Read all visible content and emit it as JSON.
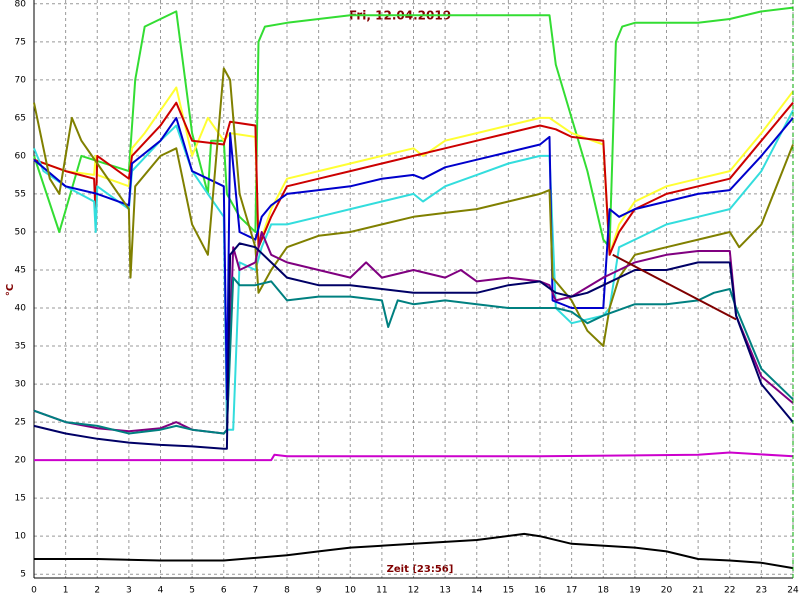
{
  "chart_data": {
    "type": "line",
    "title": "Fri, 12.04.2019",
    "x_label": "Zeit [23:56]",
    "y_label": "°C",
    "xlim": [
      0,
      24
    ],
    "xticks": [
      0,
      1,
      2,
      3,
      4,
      5,
      6,
      7,
      8,
      9,
      10,
      11,
      12,
      13,
      14,
      15,
      16,
      17,
      18,
      19,
      20,
      21,
      22,
      23,
      24
    ],
    "ylim": [
      4.5,
      80.5
    ],
    "yticks": [
      5,
      10,
      15,
      20,
      25,
      30,
      35,
      40,
      45,
      50,
      55,
      60,
      65,
      70,
      75,
      80
    ],
    "grid": true,
    "series": [
      {
        "color": "#33dd33",
        "x": [
          0,
          0.8,
          1.5,
          3,
          3.2,
          3.5,
          4.5,
          5,
          5.5,
          5.6,
          6,
          6.1,
          6.5,
          7,
          7.1,
          7.3,
          8,
          9,
          10,
          12,
          14,
          16.3,
          16.5,
          17,
          17.5,
          18,
          18.2,
          18.4,
          18.6,
          19,
          21,
          22,
          23,
          24
        ],
        "values": [
          60,
          50,
          60,
          58,
          70,
          77,
          79,
          63,
          55,
          62,
          62,
          55,
          52,
          50,
          75,
          77,
          77.5,
          78,
          78.5,
          78.5,
          78.5,
          78.5,
          72,
          65,
          58,
          49,
          48,
          75,
          77,
          77.5,
          77.5,
          78,
          79,
          79.5
        ]
      },
      {
        "color": "#ffff33",
        "x": [
          0,
          1,
          1.9,
          1.95,
          2,
          3,
          3.1,
          3.5,
          4,
          4.5,
          5,
          5.5,
          6,
          6.2,
          7,
          7.1,
          7.5,
          8,
          9,
          10,
          11,
          12,
          12.3,
          13,
          14,
          15,
          16,
          16.3,
          17,
          18,
          18.2,
          18.5,
          19,
          20,
          21,
          22,
          23,
          24
        ],
        "values": [
          59.5,
          58,
          57.5,
          60,
          57.5,
          56,
          61,
          63,
          66,
          69,
          60,
          65,
          62,
          63,
          62.5,
          48,
          53,
          57,
          58,
          59,
          60,
          61,
          60,
          62,
          63,
          64,
          65,
          65,
          63,
          61.5,
          47,
          51,
          54,
          56,
          57,
          58,
          63,
          68.5
        ]
      },
      {
        "color": "#cc0000",
        "x": [
          0,
          1,
          1.9,
          1.95,
          2,
          3,
          3.1,
          4,
          4.5,
          5,
          6,
          6.2,
          7,
          7.1,
          7.5,
          8,
          9,
          10,
          11,
          12,
          13,
          14,
          15,
          16,
          16.5,
          17,
          18,
          18.2,
          18.5,
          19,
          20,
          21,
          22,
          23,
          24
        ],
        "values": [
          59.5,
          58,
          57,
          52,
          60,
          57,
          60,
          64,
          67,
          62,
          61.5,
          64.5,
          64,
          48,
          52,
          56,
          57,
          58,
          59,
          60,
          61,
          62,
          63,
          64,
          63.5,
          62.5,
          62,
          47,
          50,
          53,
          55,
          56,
          57,
          62,
          67
        ]
      },
      {
        "color": "#33dddd",
        "x": [
          0,
          0.3,
          1,
          1.9,
          1.95,
          2,
          3,
          3.1,
          4,
          4.5,
          5,
          5.5,
          6,
          6.1,
          6.3,
          6.5,
          7,
          7.2,
          7.5,
          8,
          9,
          10,
          11,
          12,
          12.3,
          13,
          14,
          15,
          16,
          16.3,
          16.5,
          17,
          18,
          18.2,
          18.5,
          19,
          20,
          21,
          22,
          23,
          24
        ],
        "values": [
          61,
          58,
          56,
          54,
          50,
          56,
          53,
          58,
          62,
          64,
          58,
          55,
          52,
          24,
          24,
          46,
          45,
          48,
          51,
          51,
          52,
          53,
          54,
          55,
          54,
          56,
          57.5,
          59,
          60,
          60,
          40,
          38,
          39,
          40,
          48,
          49,
          51,
          52,
          53,
          58,
          66
        ]
      },
      {
        "color": "#0000cc",
        "x": [
          0,
          1,
          2,
          3,
          3.1,
          4,
          4.5,
          5,
          5.5,
          6,
          6.1,
          6.2,
          6.5,
          7,
          7.2,
          7.5,
          8,
          9,
          10,
          11,
          12,
          12.3,
          13,
          14,
          15,
          16,
          16.3,
          16.4,
          17,
          18,
          18.2,
          18.5,
          19,
          20,
          21,
          22,
          23,
          24
        ],
        "values": [
          59.5,
          56,
          55,
          53.5,
          59,
          62,
          65,
          58,
          57,
          56,
          28,
          63,
          50,
          49,
          52,
          53.5,
          55,
          55.5,
          56,
          57,
          57.5,
          57,
          58.5,
          59.5,
          60.5,
          61.5,
          62.5,
          41,
          40,
          40,
          53,
          52,
          53,
          54,
          55,
          55.5,
          60,
          65
        ]
      },
      {
        "color": "#808000",
        "x": [
          0,
          0.5,
          0.8,
          1.2,
          1.5,
          2,
          3,
          3.05,
          3.2,
          4,
          4.5,
          5,
          5.5,
          6,
          6.2,
          6.5,
          7,
          7.1,
          7.5,
          8,
          9,
          10,
          11,
          12,
          13,
          14,
          15,
          16,
          16.3,
          16.4,
          17,
          17.5,
          18,
          18.2,
          18.5,
          19,
          20,
          21,
          22,
          22.3,
          23,
          24
        ],
        "values": [
          67,
          57,
          55,
          65,
          62,
          59,
          53,
          44,
          56,
          60,
          61,
          51,
          47,
          71.5,
          70,
          55,
          48,
          42,
          45,
          48,
          49.5,
          50,
          51,
          52,
          52.5,
          53,
          54,
          55,
          55.5,
          44,
          41,
          37,
          35,
          40,
          44,
          47,
          48,
          49,
          50,
          48,
          51,
          61.5
        ]
      },
      {
        "color": "#800080",
        "x": [
          0,
          1,
          2,
          3,
          4,
          4.5,
          5,
          6,
          6.1,
          6.3,
          6.5,
          7,
          7.2,
          7.5,
          8,
          9,
          10,
          10.5,
          11,
          12,
          13,
          13.5,
          14,
          15,
          16,
          16.3,
          16.5,
          17,
          18,
          18.5,
          19,
          20,
          21,
          22,
          22.2,
          23,
          24
        ],
        "values": [
          26.5,
          25,
          24.2,
          23.8,
          24.2,
          25,
          24,
          23.5,
          24,
          48,
          45,
          46,
          50,
          47,
          46,
          45,
          44,
          46,
          44,
          45,
          44,
          45,
          43.5,
          44,
          43.5,
          43,
          41,
          41.5,
          44,
          45,
          46,
          47,
          47.5,
          47.5,
          39,
          31,
          27.5
        ]
      },
      {
        "color": "#008080",
        "x": [
          0,
          1,
          2,
          3,
          4,
          4.5,
          5,
          6,
          6.1,
          6.3,
          6.5,
          7,
          7.5,
          8,
          9,
          10,
          11,
          11.2,
          11.5,
          12,
          13,
          14,
          15,
          16,
          16.5,
          17,
          17.5,
          18,
          19,
          20,
          21,
          21.5,
          22,
          22.2,
          23,
          24
        ],
        "values": [
          26.5,
          25,
          24.5,
          23.5,
          24,
          24.5,
          24,
          23.5,
          24,
          44,
          43,
          43,
          43.5,
          41,
          41.5,
          41.5,
          41,
          37.5,
          41,
          40.5,
          41,
          40.5,
          40,
          40,
          40,
          39.5,
          38,
          39,
          40.5,
          40.5,
          41,
          42,
          42.5,
          40,
          32,
          28
        ]
      },
      {
        "color": "#000066",
        "x": [
          0,
          1,
          2,
          3,
          4,
          5,
          6,
          6.1,
          6.2,
          6.5,
          7,
          7.5,
          8,
          9,
          10,
          11,
          12,
          13,
          14,
          15,
          16,
          16.5,
          17,
          17.5,
          18,
          18.5,
          19,
          20,
          21,
          22,
          22.2,
          23,
          24
        ],
        "values": [
          24.5,
          23.5,
          22.8,
          22.3,
          22,
          21.8,
          21.5,
          21.5,
          47,
          48.5,
          48,
          46,
          44,
          43,
          43,
          42.5,
          42,
          42,
          42,
          43,
          43.5,
          42,
          41.5,
          42,
          43,
          44,
          45,
          45,
          46,
          46,
          39,
          30,
          25
        ]
      },
      {
        "color": "#800000",
        "x": [
          18.3,
          22.2
        ],
        "values": [
          47,
          38.5
        ]
      },
      {
        "color": "#cc00cc",
        "x": [
          0,
          7.5,
          7.6,
          8,
          12,
          16,
          21,
          22,
          24
        ],
        "values": [
          20,
          20,
          20.7,
          20.5,
          20.5,
          20.5,
          20.7,
          21,
          20.5
        ]
      },
      {
        "color": "#000000",
        "x": [
          0,
          2,
          4,
          6,
          8,
          9,
          10,
          12,
          14,
          15.5,
          16,
          17,
          19,
          20,
          21,
          22,
          23,
          24
        ],
        "values": [
          7,
          7,
          6.8,
          6.8,
          7.5,
          8,
          8.5,
          9,
          9.5,
          10.3,
          10,
          9,
          8.5,
          8,
          7,
          6.8,
          6.5,
          5.8
        ]
      }
    ]
  }
}
